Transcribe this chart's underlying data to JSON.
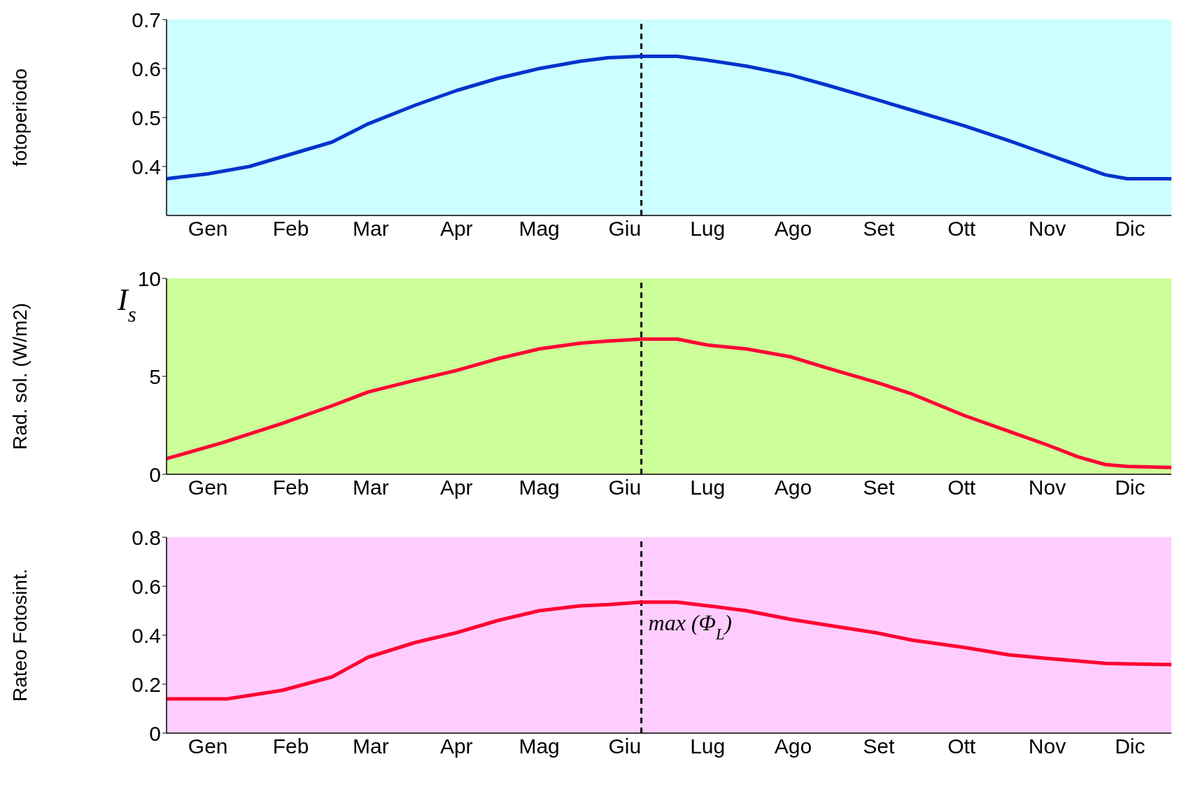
{
  "chart_data": [
    {
      "type": "line",
      "ylabel": "fotoperiodo",
      "xlim": [
        "--01-01",
        "--12-31"
      ],
      "xticks": [
        {
          "value": "--01-16",
          "label": "Gen"
        },
        {
          "value": "--02-15",
          "label": "Feb"
        },
        {
          "value": "--03-16",
          "label": "Mar"
        },
        {
          "value": "--04-16",
          "label": "Apr"
        },
        {
          "value": "--05-16",
          "label": "Mag"
        },
        {
          "value": "--06-16",
          "label": "Giu"
        },
        {
          "value": "--07-16",
          "label": "Lug"
        },
        {
          "value": "--08-16",
          "label": "Ago"
        },
        {
          "value": "--09-16",
          "label": "Set"
        },
        {
          "value": "--10-16",
          "label": "Ott"
        },
        {
          "value": "--11-16",
          "label": "Nov"
        },
        {
          "value": "--12-16",
          "label": "Dic"
        }
      ],
      "ylim": [
        0.3,
        0.7
      ],
      "yticks": [
        0.4,
        0.5,
        0.6,
        0.7
      ],
      "grid": false,
      "marker": "none",
      "line_style": "solid",
      "x": [
        "--01-01",
        "--01-16",
        "--01-31",
        "--02-12",
        "--03-02",
        "--03-15",
        "--04-01",
        "--04-16",
        "--05-01",
        "--05-16",
        "--05-31",
        "--06-10",
        "--06-22",
        "--07-05",
        "--07-16",
        "--07-30",
        "--08-15",
        "--08-29",
        "--09-15",
        "--09-28",
        "--10-17",
        "--11-02",
        "--11-16",
        "--11-27",
        "--12-07",
        "--12-15",
        "--12-31"
      ],
      "series": [
        {
          "color": "#0033cc",
          "values": [
            0.375,
            0.385,
            0.4,
            0.42,
            0.45,
            0.487,
            0.525,
            0.555,
            0.58,
            0.6,
            0.615,
            0.622,
            0.625,
            0.625,
            0.617,
            0.605,
            0.587,
            0.565,
            0.537,
            0.515,
            0.483,
            0.453,
            0.425,
            0.403,
            0.383,
            0.375,
            0.375
          ]
        }
      ],
      "ref_lines": [
        {
          "axis": "x",
          "value": "--06-22",
          "color": "#000000",
          "line_style": "dashed"
        }
      ]
    },
    {
      "type": "line",
      "ylabel": "Rad. sol. (W/m2)",
      "annotations": [
        "I$_{s}$"
      ],
      "xlim": [
        "--01-01",
        "--12-31"
      ],
      "xticks": [
        {
          "value": "--01-16",
          "label": "Gen"
        },
        {
          "value": "--02-15",
          "label": "Feb"
        },
        {
          "value": "--03-16",
          "label": "Mar"
        },
        {
          "value": "--04-16",
          "label": "Apr"
        },
        {
          "value": "--05-16",
          "label": "Mag"
        },
        {
          "value": "--06-16",
          "label": "Giu"
        },
        {
          "value": "--07-16",
          "label": "Lug"
        },
        {
          "value": "--08-16",
          "label": "Ago"
        },
        {
          "value": "--09-16",
          "label": "Set"
        },
        {
          "value": "--10-16",
          "label": "Ott"
        },
        {
          "value": "--11-16",
          "label": "Nov"
        },
        {
          "value": "--12-16",
          "label": "Dic"
        }
      ],
      "ylim": [
        0,
        10
      ],
      "yticks": [
        0,
        5,
        10
      ],
      "grid": false,
      "marker": "none",
      "line_style": "solid",
      "x": [
        "--01-01",
        "--01-21",
        "--02-12",
        "--03-02",
        "--03-15",
        "--04-01",
        "--04-16",
        "--05-01",
        "--05-16",
        "--05-31",
        "--06-10",
        "--06-22",
        "--07-05",
        "--07-16",
        "--07-30",
        "--08-15",
        "--08-29",
        "--09-15",
        "--09-28",
        "--10-17",
        "--11-02",
        "--11-16",
        "--11-27",
        "--12-07",
        "--12-15",
        "--12-31"
      ],
      "series": [
        {
          "color": "#ff0033",
          "values": [
            0.8,
            1.6,
            2.6,
            3.5,
            4.2,
            4.8,
            5.3,
            5.9,
            6.4,
            6.7,
            6.8,
            6.9,
            6.9,
            6.6,
            6.4,
            6.0,
            5.4,
            4.7,
            4.1,
            3.0,
            2.2,
            1.5,
            0.9,
            0.5,
            0.4,
            0.35
          ]
        }
      ],
      "ref_lines": [
        {
          "axis": "x",
          "value": "--06-22",
          "color": "#000000",
          "line_style": "dashed"
        }
      ]
    },
    {
      "type": "line",
      "ylabel": "Rateo Fotosint.",
      "annotations": [
        {
          "text": "max (Φ$_{L}$)",
          "x": "--06-22",
          "y": 0.535
        }
      ],
      "xlim": [
        "--01-01",
        "--12-31"
      ],
      "xticks": [
        {
          "value": "--01-16",
          "label": "Gen"
        },
        {
          "value": "--02-15",
          "label": "Feb"
        },
        {
          "value": "--03-16",
          "label": "Mar"
        },
        {
          "value": "--04-16",
          "label": "Apr"
        },
        {
          "value": "--05-16",
          "label": "Mag"
        },
        {
          "value": "--06-16",
          "label": "Giu"
        },
        {
          "value": "--07-16",
          "label": "Lug"
        },
        {
          "value": "--08-16",
          "label": "Ago"
        },
        {
          "value": "--09-16",
          "label": "Set"
        },
        {
          "value": "--10-16",
          "label": "Ott"
        },
        {
          "value": "--11-16",
          "label": "Nov"
        },
        {
          "value": "--12-16",
          "label": "Dic"
        }
      ],
      "ylim": [
        0,
        0.8
      ],
      "yticks": [
        0,
        0.2,
        0.4,
        0.6,
        0.8
      ],
      "grid": false,
      "marker": "none",
      "line_style": "solid",
      "x": [
        "--01-01",
        "--01-23",
        "--02-12",
        "--03-02",
        "--03-15",
        "--04-01",
        "--04-16",
        "--05-01",
        "--05-16",
        "--05-31",
        "--06-10",
        "--06-22",
        "--07-05",
        "--07-16",
        "--07-30",
        "--08-15",
        "--08-29",
        "--09-15",
        "--09-28",
        "--10-17",
        "--11-02",
        "--11-16",
        "--11-27",
        "--12-07",
        "--12-15",
        "--12-31"
      ],
      "series": [
        {
          "color": "#ff0033",
          "values": [
            0.14,
            0.14,
            0.175,
            0.23,
            0.31,
            0.37,
            0.41,
            0.46,
            0.5,
            0.52,
            0.525,
            0.535,
            0.535,
            0.52,
            0.5,
            0.465,
            0.44,
            0.41,
            0.38,
            0.35,
            0.32,
            0.305,
            0.295,
            0.285,
            0.283,
            0.28
          ]
        }
      ],
      "ref_lines": [
        {
          "axis": "x",
          "value": "--06-22",
          "color": "#000000",
          "line_style": "dashed"
        }
      ]
    }
  ]
}
